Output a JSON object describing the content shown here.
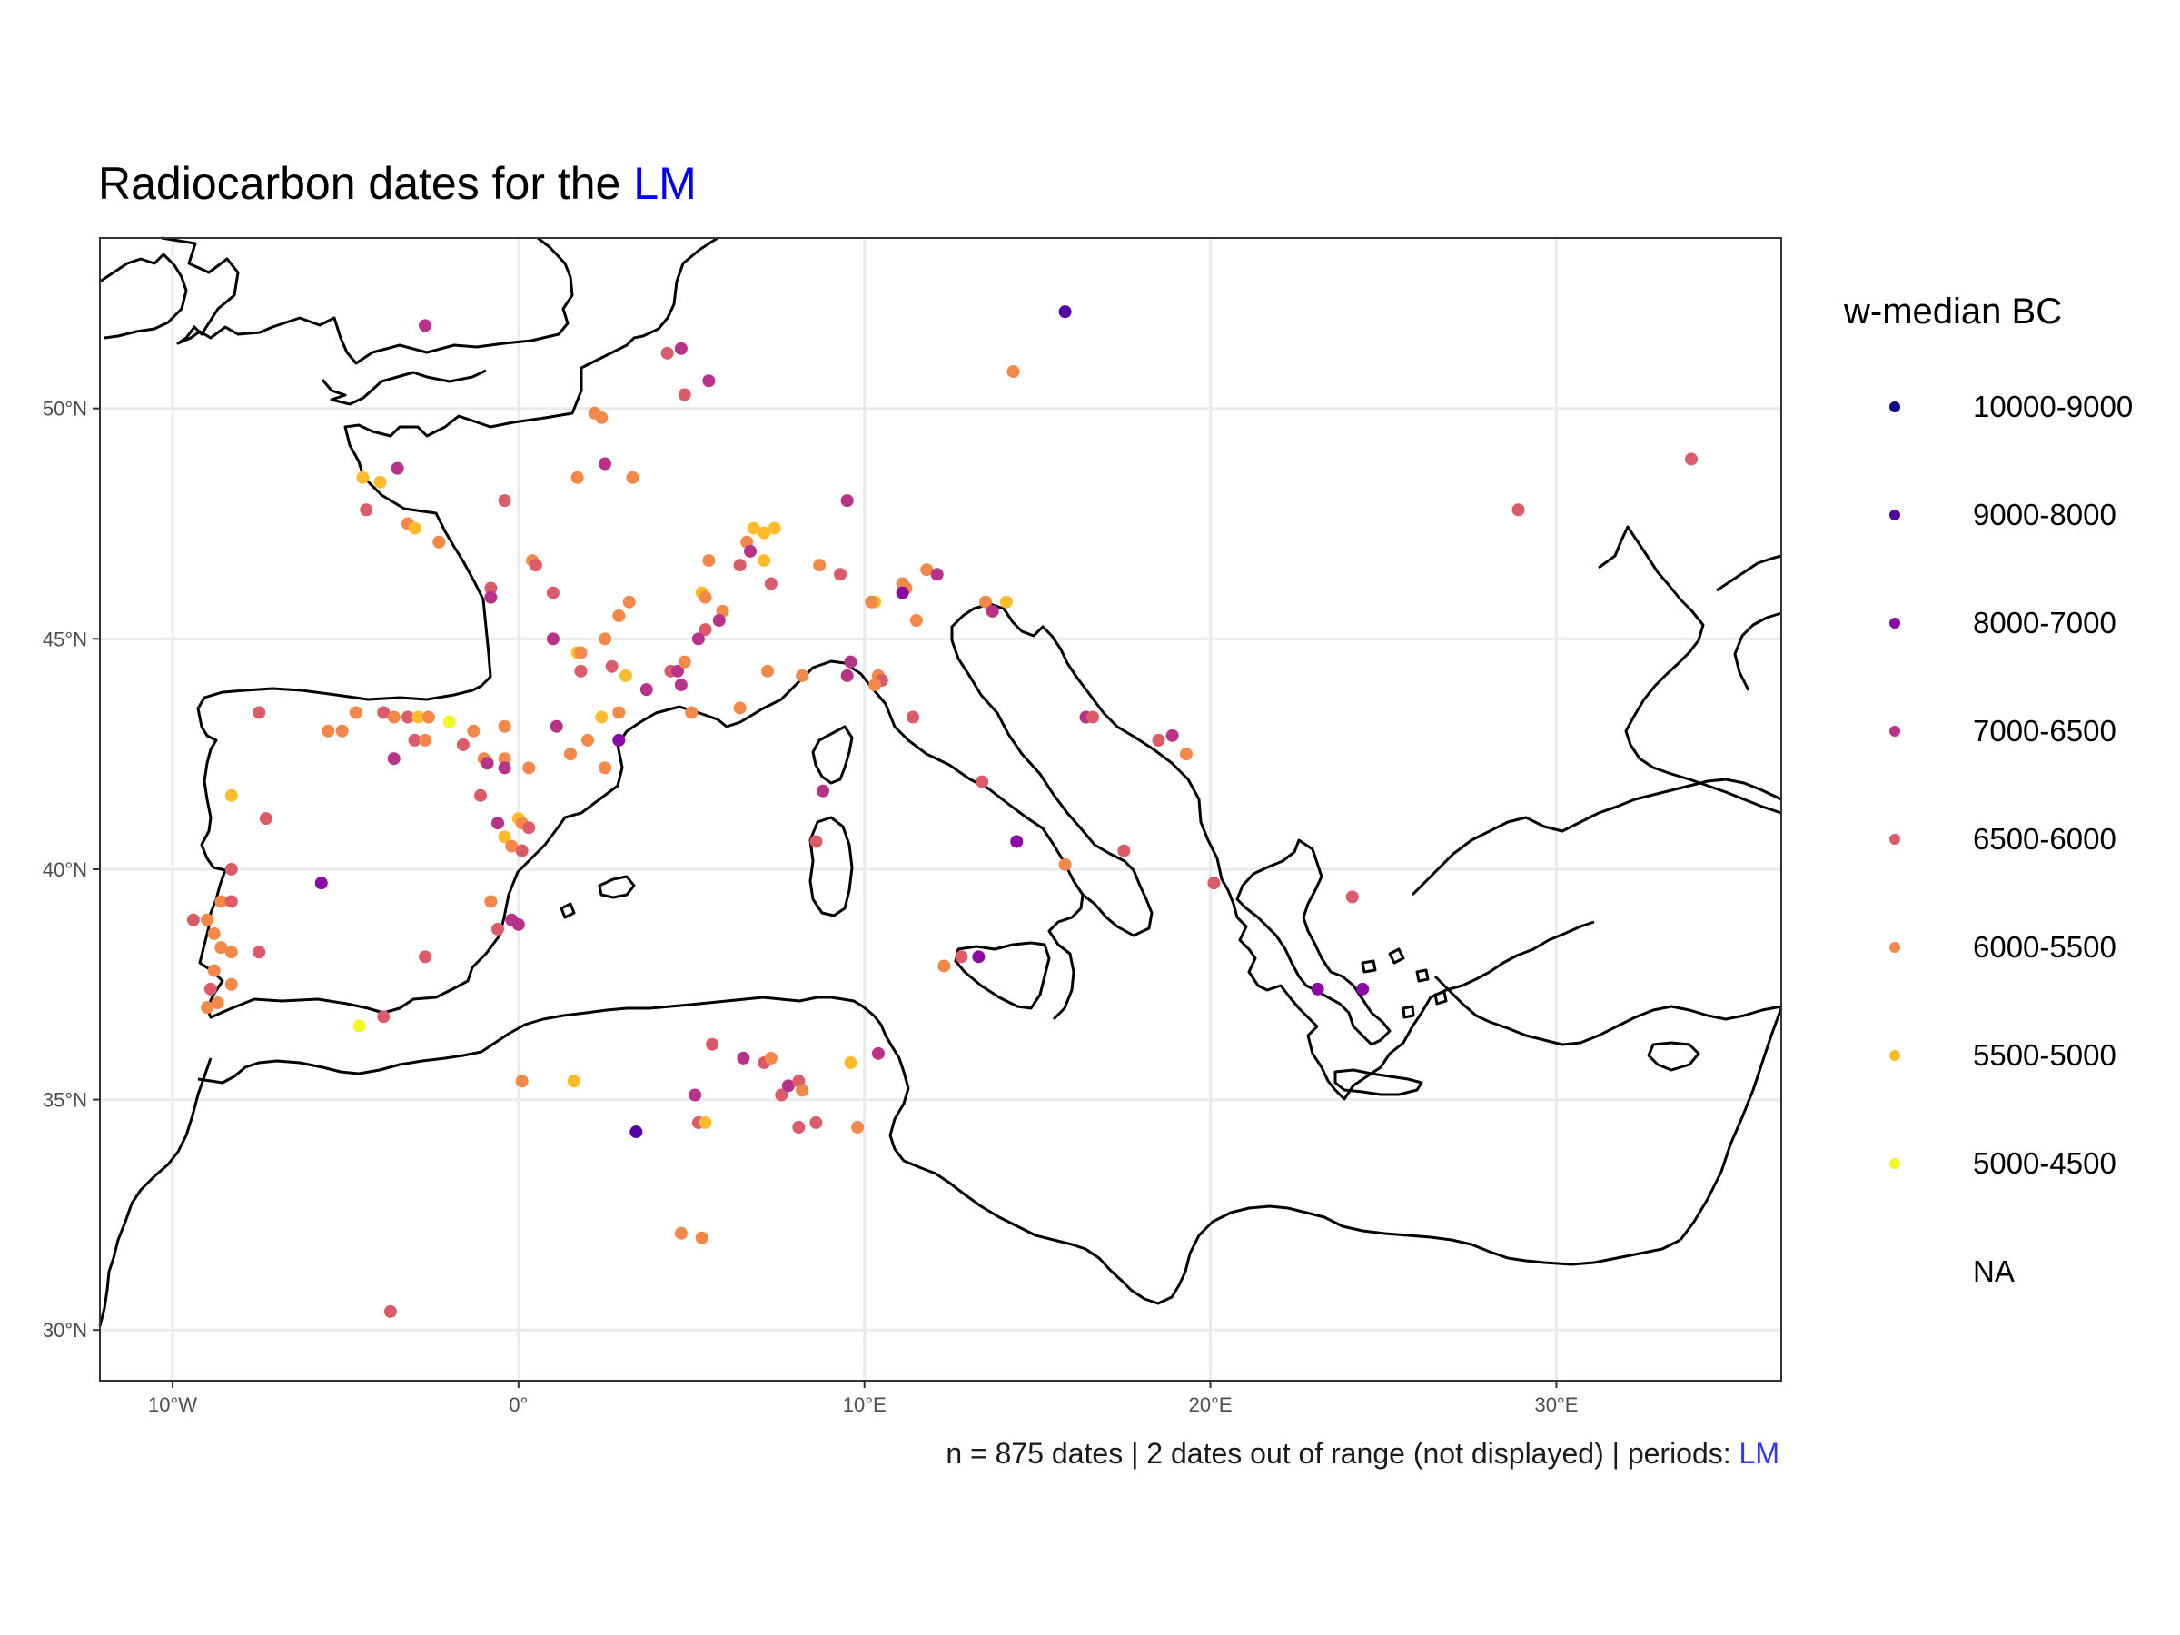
{
  "title": {
    "text": "Radiocarbon dates for the ",
    "highlight": "LM",
    "highlight_color": "#0000ff"
  },
  "caption": {
    "text": "n = 875 dates | 2 dates out of range (not displayed) | periods: ",
    "highlight": "LM",
    "highlight_color": "#3333ff"
  },
  "legend": {
    "title": "w-median BC",
    "items": [
      {
        "label": "10000-9000",
        "color": "#0d0887"
      },
      {
        "label": "9000-8000",
        "color": "#5402a3"
      },
      {
        "label": "8000-7000",
        "color": "#8b0aa5"
      },
      {
        "label": "7000-6500",
        "color": "#b93289"
      },
      {
        "label": "6500-6000",
        "color": "#db5c68"
      },
      {
        "label": "6000-5500",
        "color": "#f48849"
      },
      {
        "label": "5500-5000",
        "color": "#febc2a"
      },
      {
        "label": "5000-4500",
        "color": "#f0f921"
      },
      {
        "label": "NA",
        "color": ""
      }
    ]
  },
  "map": {
    "x_range_lon": [
      -12.1,
      36.5
    ],
    "y_range_lat": [
      28.9,
      53.7
    ],
    "lon_ticks": [
      -10,
      0,
      10,
      20,
      30
    ],
    "lat_ticks": [
      30,
      35,
      40,
      45,
      50
    ],
    "lon_tick_labels": [
      "10°W",
      "0°",
      "10°E",
      "20°E",
      "30°E"
    ],
    "lat_tick_labels": [
      "30°N",
      "35°N",
      "40°N",
      "45°N",
      "50°N"
    ],
    "grid": true,
    "coastline_color": "#000000"
  },
  "chart_data": {
    "type": "scatter",
    "title": "Radiocarbon dates for the LM",
    "xlabel": "",
    "ylabel": "",
    "xlim": [
      -12.1,
      36.5
    ],
    "ylim": [
      28.9,
      53.7
    ],
    "color_legend": "w-median BC",
    "legend_position": "right",
    "points": [
      {
        "lon": -2.7,
        "lat": 51.8,
        "c": 3
      },
      {
        "lon": 15.8,
        "lat": 52.1,
        "c": 1
      },
      {
        "lon": 4.7,
        "lat": 51.3,
        "c": 3
      },
      {
        "lon": 4.3,
        "lat": 51.2,
        "c": 4
      },
      {
        "lon": 5.5,
        "lat": 50.6,
        "c": 3
      },
      {
        "lon": 4.8,
        "lat": 50.3,
        "c": 4
      },
      {
        "lon": 14.3,
        "lat": 50.8,
        "c": 5
      },
      {
        "lon": 2.2,
        "lat": 49.9,
        "c": 5
      },
      {
        "lon": 2.4,
        "lat": 49.8,
        "c": 5
      },
      {
        "lon": 2.5,
        "lat": 48.8,
        "c": 3
      },
      {
        "lon": 1.7,
        "lat": 48.5,
        "c": 5
      },
      {
        "lon": 3.3,
        "lat": 48.5,
        "c": 5
      },
      {
        "lon": -3.5,
        "lat": 48.7,
        "c": 3
      },
      {
        "lon": -4.5,
        "lat": 48.5,
        "c": 6
      },
      {
        "lon": -4.0,
        "lat": 48.4,
        "c": 6
      },
      {
        "lon": -0.4,
        "lat": 48.0,
        "c": 4
      },
      {
        "lon": 9.5,
        "lat": 48.0,
        "c": 3
      },
      {
        "lon": 33.9,
        "lat": 48.9,
        "c": 4
      },
      {
        "lon": 28.9,
        "lat": 47.8,
        "c": 4
      },
      {
        "lon": -4.4,
        "lat": 47.8,
        "c": 4
      },
      {
        "lon": -3.2,
        "lat": 47.5,
        "c": 5
      },
      {
        "lon": -3.0,
        "lat": 47.4,
        "c": 6
      },
      {
        "lon": -2.3,
        "lat": 47.1,
        "c": 5
      },
      {
        "lon": 6.8,
        "lat": 47.4,
        "c": 6
      },
      {
        "lon": 7.1,
        "lat": 47.3,
        "c": 6
      },
      {
        "lon": 7.4,
        "lat": 47.4,
        "c": 6
      },
      {
        "lon": 6.6,
        "lat": 47.1,
        "c": 5
      },
      {
        "lon": 6.7,
        "lat": 46.9,
        "c": 3
      },
      {
        "lon": 5.5,
        "lat": 46.7,
        "c": 5
      },
      {
        "lon": 7.1,
        "lat": 46.7,
        "c": 6
      },
      {
        "lon": 6.4,
        "lat": 46.6,
        "c": 4
      },
      {
        "lon": 8.7,
        "lat": 46.6,
        "c": 5
      },
      {
        "lon": 9.3,
        "lat": 46.4,
        "c": 4
      },
      {
        "lon": 7.3,
        "lat": 46.2,
        "c": 4
      },
      {
        "lon": 0.4,
        "lat": 46.7,
        "c": 5
      },
      {
        "lon": 0.5,
        "lat": 46.6,
        "c": 4
      },
      {
        "lon": 11.8,
        "lat": 46.5,
        "c": 5
      },
      {
        "lon": 12.1,
        "lat": 46.4,
        "c": 3
      },
      {
        "lon": 11.1,
        "lat": 46.2,
        "c": 5
      },
      {
        "lon": 11.2,
        "lat": 46.1,
        "c": 5
      },
      {
        "lon": 11.1,
        "lat": 46.0,
        "c": 2
      },
      {
        "lon": 10.3,
        "lat": 45.8,
        "c": 6
      },
      {
        "lon": 10.2,
        "lat": 45.8,
        "c": 5
      },
      {
        "lon": 13.5,
        "lat": 45.8,
        "c": 5
      },
      {
        "lon": 14.1,
        "lat": 45.8,
        "c": 6
      },
      {
        "lon": 13.7,
        "lat": 45.6,
        "c": 3
      },
      {
        "lon": 11.5,
        "lat": 45.4,
        "c": 5
      },
      {
        "lon": -0.8,
        "lat": 46.1,
        "c": 4
      },
      {
        "lon": -0.8,
        "lat": 45.9,
        "c": 3
      },
      {
        "lon": 1.0,
        "lat": 46.0,
        "c": 4
      },
      {
        "lon": 3.2,
        "lat": 45.8,
        "c": 5
      },
      {
        "lon": 2.9,
        "lat": 45.5,
        "c": 5
      },
      {
        "lon": 5.3,
        "lat": 46.0,
        "c": 6
      },
      {
        "lon": 5.4,
        "lat": 45.9,
        "c": 5
      },
      {
        "lon": 5.9,
        "lat": 45.6,
        "c": 5
      },
      {
        "lon": 5.8,
        "lat": 45.4,
        "c": 3
      },
      {
        "lon": 5.4,
        "lat": 45.2,
        "c": 4
      },
      {
        "lon": 5.2,
        "lat": 45.0,
        "c": 3
      },
      {
        "lon": 2.5,
        "lat": 45.0,
        "c": 5
      },
      {
        "lon": 1.7,
        "lat": 44.7,
        "c": 6
      },
      {
        "lon": 1.8,
        "lat": 44.7,
        "c": 5
      },
      {
        "lon": 1.0,
        "lat": 45.0,
        "c": 3
      },
      {
        "lon": 1.8,
        "lat": 44.3,
        "c": 4
      },
      {
        "lon": 2.7,
        "lat": 44.4,
        "c": 4
      },
      {
        "lon": 3.1,
        "lat": 44.2,
        "c": 6
      },
      {
        "lon": 3.7,
        "lat": 43.9,
        "c": 3
      },
      {
        "lon": 4.4,
        "lat": 44.3,
        "c": 4
      },
      {
        "lon": 4.6,
        "lat": 44.3,
        "c": 3
      },
      {
        "lon": 4.8,
        "lat": 44.5,
        "c": 5
      },
      {
        "lon": 4.7,
        "lat": 44.0,
        "c": 3
      },
      {
        "lon": 7.2,
        "lat": 44.3,
        "c": 5
      },
      {
        "lon": 8.2,
        "lat": 44.2,
        "c": 5
      },
      {
        "lon": 9.6,
        "lat": 44.5,
        "c": 3
      },
      {
        "lon": 9.5,
        "lat": 44.2,
        "c": 3
      },
      {
        "lon": 10.4,
        "lat": 44.2,
        "c": 5
      },
      {
        "lon": 10.5,
        "lat": 44.1,
        "c": 4
      },
      {
        "lon": 10.3,
        "lat": 44.0,
        "c": 5
      },
      {
        "lon": 11.4,
        "lat": 43.3,
        "c": 4
      },
      {
        "lon": 5.0,
        "lat": 43.4,
        "c": 5
      },
      {
        "lon": 6.4,
        "lat": 43.5,
        "c": 5
      },
      {
        "lon": 2.4,
        "lat": 43.3,
        "c": 6
      },
      {
        "lon": 1.1,
        "lat": 43.1,
        "c": 3
      },
      {
        "lon": -0.4,
        "lat": 43.1,
        "c": 5
      },
      {
        "lon": 2.0,
        "lat": 42.8,
        "c": 5
      },
      {
        "lon": 2.9,
        "lat": 42.8,
        "c": 2
      },
      {
        "lon": 2.9,
        "lat": 43.4,
        "c": 5
      },
      {
        "lon": 1.5,
        "lat": 42.5,
        "c": 5
      },
      {
        "lon": 2.5,
        "lat": 42.2,
        "c": 5
      },
      {
        "lon": -7.5,
        "lat": 43.4,
        "c": 4
      },
      {
        "lon": -5.5,
        "lat": 43.0,
        "c": 5
      },
      {
        "lon": -5.1,
        "lat": 43.0,
        "c": 5
      },
      {
        "lon": -4.7,
        "lat": 43.4,
        "c": 5
      },
      {
        "lon": -3.9,
        "lat": 43.4,
        "c": 4
      },
      {
        "lon": -3.6,
        "lat": 43.3,
        "c": 5
      },
      {
        "lon": -3.2,
        "lat": 43.3,
        "c": 4
      },
      {
        "lon": -2.9,
        "lat": 43.3,
        "c": 6
      },
      {
        "lon": -2.6,
        "lat": 43.3,
        "c": 5
      },
      {
        "lon": -2.0,
        "lat": 43.2,
        "c": 7
      },
      {
        "lon": -3.0,
        "lat": 42.8,
        "c": 4
      },
      {
        "lon": -2.7,
        "lat": 42.8,
        "c": 5
      },
      {
        "lon": -1.3,
        "lat": 43.0,
        "c": 5
      },
      {
        "lon": -1.6,
        "lat": 42.7,
        "c": 4
      },
      {
        "lon": -1.0,
        "lat": 42.4,
        "c": 5
      },
      {
        "lon": -0.9,
        "lat": 42.3,
        "c": 3
      },
      {
        "lon": -0.4,
        "lat": 42.4,
        "c": 5
      },
      {
        "lon": -0.4,
        "lat": 42.2,
        "c": 3
      },
      {
        "lon": 0.3,
        "lat": 42.2,
        "c": 5
      },
      {
        "lon": -3.6,
        "lat": 42.4,
        "c": 3
      },
      {
        "lon": -1.1,
        "lat": 41.6,
        "c": 4
      },
      {
        "lon": -0.6,
        "lat": 41.0,
        "c": 3
      },
      {
        "lon": 0.0,
        "lat": 41.1,
        "c": 6
      },
      {
        "lon": 0.1,
        "lat": 41.0,
        "c": 5
      },
      {
        "lon": -0.4,
        "lat": 40.7,
        "c": 6
      },
      {
        "lon": -0.2,
        "lat": 40.5,
        "c": 5
      },
      {
        "lon": 0.3,
        "lat": 40.9,
        "c": 4
      },
      {
        "lon": 0.1,
        "lat": 40.4,
        "c": 4
      },
      {
        "lon": -8.3,
        "lat": 41.6,
        "c": 6
      },
      {
        "lon": -7.3,
        "lat": 41.1,
        "c": 4
      },
      {
        "lon": -8.3,
        "lat": 40.0,
        "c": 4
      },
      {
        "lon": -5.7,
        "lat": 39.7,
        "c": 2
      },
      {
        "lon": -9.4,
        "lat": 38.9,
        "c": 4
      },
      {
        "lon": -9.0,
        "lat": 38.9,
        "c": 5
      },
      {
        "lon": -8.6,
        "lat": 39.3,
        "c": 5
      },
      {
        "lon": -8.3,
        "lat": 39.3,
        "c": 4
      },
      {
        "lon": -8.8,
        "lat": 38.6,
        "c": 5
      },
      {
        "lon": -8.6,
        "lat": 38.3,
        "c": 5
      },
      {
        "lon": -8.3,
        "lat": 38.2,
        "c": 5
      },
      {
        "lon": -7.5,
        "lat": 38.2,
        "c": 4
      },
      {
        "lon": -8.8,
        "lat": 37.8,
        "c": 5
      },
      {
        "lon": -8.9,
        "lat": 37.4,
        "c": 4
      },
      {
        "lon": -8.3,
        "lat": 37.5,
        "c": 5
      },
      {
        "lon": -8.7,
        "lat": 37.1,
        "c": 5
      },
      {
        "lon": -9.0,
        "lat": 37.0,
        "c": 5
      },
      {
        "lon": -0.8,
        "lat": 39.3,
        "c": 5
      },
      {
        "lon": -0.6,
        "lat": 38.7,
        "c": 4
      },
      {
        "lon": -0.2,
        "lat": 38.9,
        "c": 3
      },
      {
        "lon": 0.0,
        "lat": 38.8,
        "c": 3
      },
      {
        "lon": -2.7,
        "lat": 38.1,
        "c": 4
      },
      {
        "lon": -4.6,
        "lat": 36.6,
        "c": 7
      },
      {
        "lon": -3.9,
        "lat": 36.8,
        "c": 4
      },
      {
        "lon": 0.1,
        "lat": 35.4,
        "c": 5
      },
      {
        "lon": 1.6,
        "lat": 35.4,
        "c": 6
      },
      {
        "lon": 3.4,
        "lat": 34.3,
        "c": 1
      },
      {
        "lon": 5.1,
        "lat": 35.1,
        "c": 3
      },
      {
        "lon": 5.2,
        "lat": 34.5,
        "c": 4
      },
      {
        "lon": 5.4,
        "lat": 34.5,
        "c": 6
      },
      {
        "lon": 5.6,
        "lat": 36.2,
        "c": 4
      },
      {
        "lon": 6.5,
        "lat": 35.9,
        "c": 3
      },
      {
        "lon": 7.1,
        "lat": 35.8,
        "c": 4
      },
      {
        "lon": 7.3,
        "lat": 35.9,
        "c": 5
      },
      {
        "lon": 7.6,
        "lat": 35.1,
        "c": 4
      },
      {
        "lon": 7.8,
        "lat": 35.3,
        "c": 3
      },
      {
        "lon": 8.1,
        "lat": 35.4,
        "c": 4
      },
      {
        "lon": 8.2,
        "lat": 35.2,
        "c": 5
      },
      {
        "lon": 8.1,
        "lat": 34.4,
        "c": 4
      },
      {
        "lon": 8.6,
        "lat": 34.5,
        "c": 4
      },
      {
        "lon": 9.6,
        "lat": 35.8,
        "c": 6
      },
      {
        "lon": 10.4,
        "lat": 36.0,
        "c": 3
      },
      {
        "lon": 9.8,
        "lat": 34.4,
        "c": 5
      },
      {
        "lon": 4.7,
        "lat": 32.1,
        "c": 5
      },
      {
        "lon": 5.3,
        "lat": 32.0,
        "c": 5
      },
      {
        "lon": -3.7,
        "lat": 30.4,
        "c": 4
      },
      {
        "lon": 8.8,
        "lat": 41.7,
        "c": 3
      },
      {
        "lon": 8.6,
        "lat": 40.6,
        "c": 4
      },
      {
        "lon": 13.4,
        "lat": 41.9,
        "c": 4
      },
      {
        "lon": 14.4,
        "lat": 40.6,
        "c": 2
      },
      {
        "lon": 15.8,
        "lat": 40.1,
        "c": 5
      },
      {
        "lon": 17.5,
        "lat": 40.4,
        "c": 4
      },
      {
        "lon": 16.4,
        "lat": 43.3,
        "c": 3
      },
      {
        "lon": 16.6,
        "lat": 43.3,
        "c": 4
      },
      {
        "lon": 18.5,
        "lat": 42.8,
        "c": 4
      },
      {
        "lon": 18.9,
        "lat": 42.9,
        "c": 3
      },
      {
        "lon": 19.3,
        "lat": 42.5,
        "c": 5
      },
      {
        "lon": 20.1,
        "lat": 39.7,
        "c": 4
      },
      {
        "lon": 12.3,
        "lat": 37.9,
        "c": 5
      },
      {
        "lon": 12.8,
        "lat": 38.1,
        "c": 4
      },
      {
        "lon": 13.3,
        "lat": 38.1,
        "c": 2
      },
      {
        "lon": 24.1,
        "lat": 39.4,
        "c": 4
      },
      {
        "lon": 23.1,
        "lat": 37.4,
        "c": 2
      },
      {
        "lon": 24.4,
        "lat": 37.4,
        "c": 2
      }
    ]
  }
}
